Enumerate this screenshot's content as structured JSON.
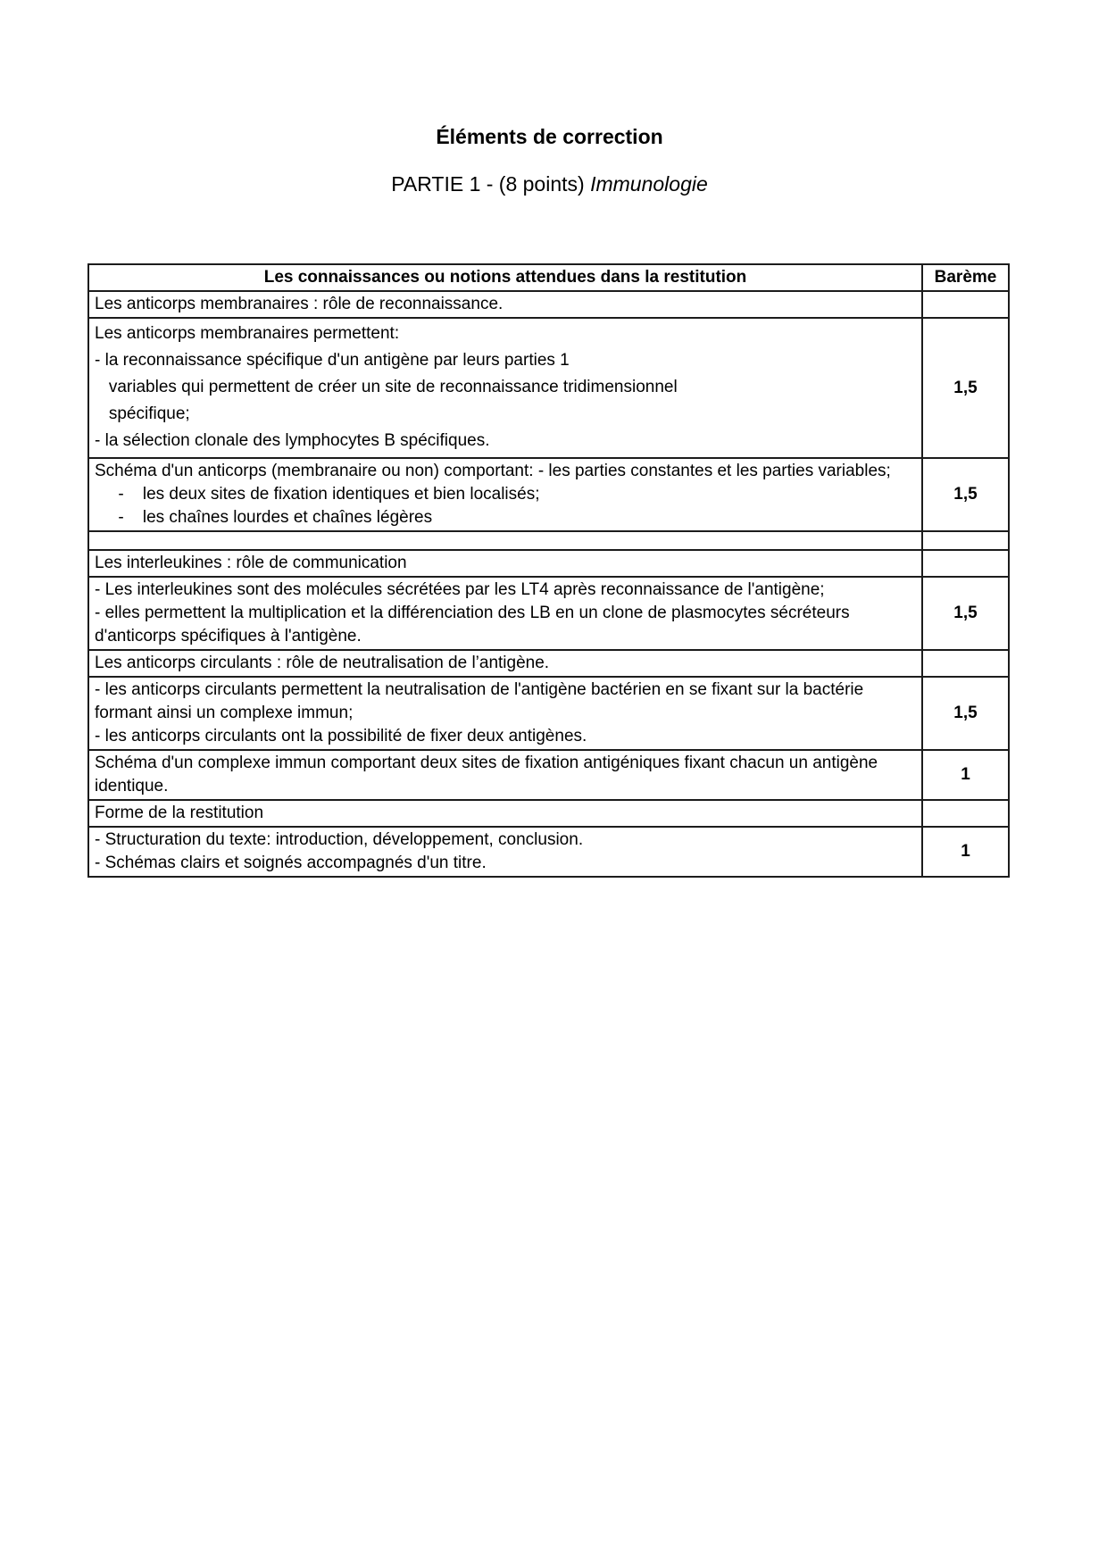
{
  "document": {
    "title": "Éléments de correction",
    "subtitle": {
      "text": "PARTIE 1 - (8 points) ",
      "emphasis": "Immunologie"
    }
  },
  "table": {
    "headers": {
      "criteria": "Les connaissances ou notions attendues dans la restitution",
      "bareme": "Barème"
    },
    "rows": [
      {
        "lines": [
          "Les anticorps membranaires : rôle de reconnaissance."
        ],
        "bareme": ""
      },
      {
        "lines": [
          "Les anticorps membranaires permettent:",
          "- la reconnaissance spécifique d'un antigène par leurs parties 1",
          "   variables qui permettent de créer un site de reconnaissance tridimensionnel",
          "   spécifique;",
          "- la sélection clonale des lymphocytes B spécifiques."
        ],
        "bareme": "1,5"
      },
      {
        "lines": [
          "Schéma d'un anticorps (membranaire ou non) comportant: - les parties constantes et les parties variables;",
          "     -    les deux sites de fixation identiques et bien localisés;",
          "     -    les chaînes lourdes et chaînes légères"
        ],
        "bareme": "1,5"
      },
      {
        "lines": [],
        "bareme": ""
      },
      {
        "lines": [
          "Les interleukines : rôle de communication"
        ],
        "bareme": ""
      },
      {
        "lines": [
          "- Les interleukines sont des molécules sécrétées par les LT4 après reconnaissance de l'antigène;",
          "- elles permettent la multiplication et la différenciation des LB en un clone de plasmocytes sécréteurs d'anticorps spécifiques à l'antigène."
        ],
        "bareme": "1,5"
      },
      {
        "lines": [
          "Les anticorps circulants : rôle de neutralisation de l’antigène."
        ],
        "bareme": ""
      },
      {
        "lines": [
          "- les anticorps circulants permettent la neutralisation de l'antigène bactérien en se fixant sur la bactérie formant ainsi un complexe immun;",
          "- les anticorps circulants ont la possibilité de fixer deux antigènes."
        ],
        "bareme": "1,5"
      },
      {
        "lines": [
          "Schéma d'un complexe immun comportant deux sites de fixation antigéniques fixant chacun un antigène identique."
        ],
        "bareme": "1"
      },
      {
        "lines": [
          "Forme de la restitution"
        ],
        "bareme": ""
      },
      {
        "lines": [
          "- Structuration du texte: introduction, développement, conclusion.",
          "- Schémas clairs et soignés accompagnés d'un titre."
        ],
        "bareme": "1"
      }
    ]
  }
}
